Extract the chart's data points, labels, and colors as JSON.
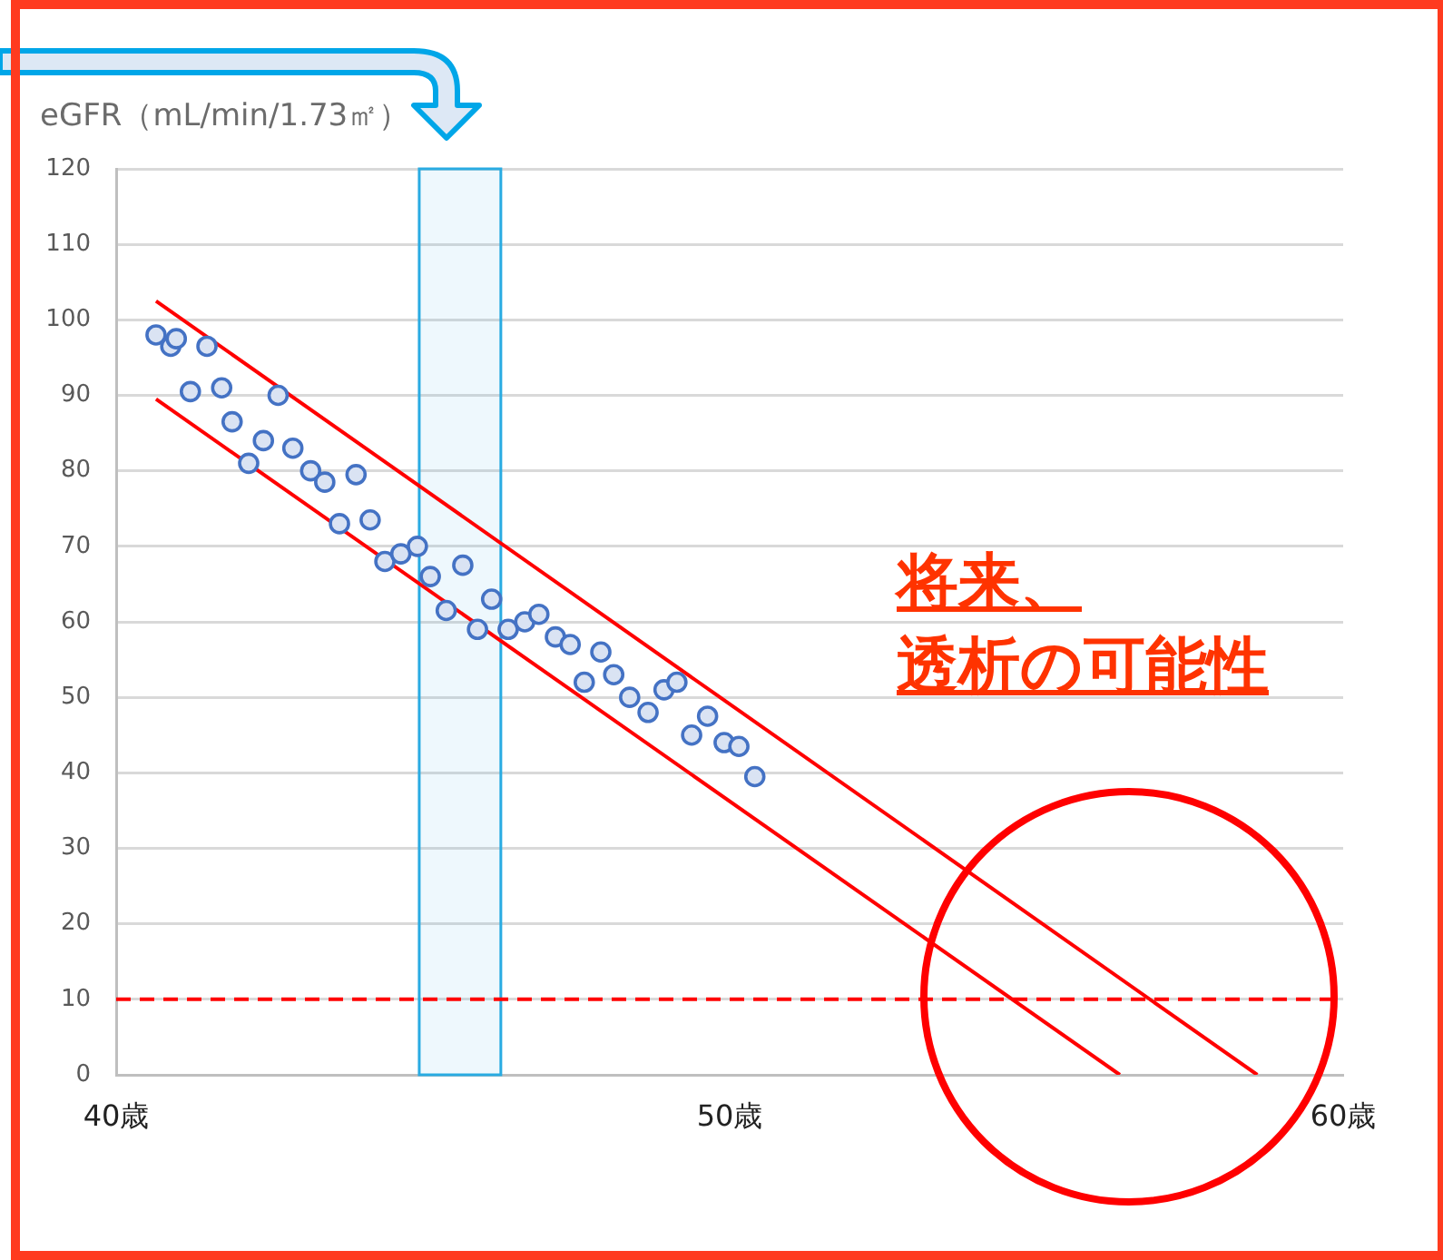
{
  "chart_data": {
    "type": "scatter",
    "ylabel": "eGFR（mL/min/1.73㎡）",
    "xlim": [
      40,
      60
    ],
    "xticks": [
      {
        "value": 40,
        "label": "40歳"
      },
      {
        "value": 50,
        "label": "50歳"
      },
      {
        "value": 60,
        "label": "60歳"
      }
    ],
    "ylim": [
      0,
      120
    ],
    "yticks": [
      0,
      10,
      20,
      30,
      40,
      50,
      60,
      70,
      80,
      90,
      100,
      110,
      120
    ],
    "grid": "y",
    "legend": false,
    "series": [
      {
        "marker": "circle",
        "color": "#4472c4",
        "x": [
          40.65,
          40.89,
          40.98,
          41.21,
          41.48,
          41.72,
          41.89,
          42.16,
          42.4,
          42.64,
          42.88,
          43.17,
          43.4,
          43.64,
          43.91,
          44.14,
          44.38,
          44.64,
          44.91,
          45.12,
          45.38,
          45.65,
          45.89,
          46.12,
          46.39,
          46.66,
          46.89,
          47.16,
          47.4,
          47.63,
          47.9,
          48.11,
          48.37,
          48.67,
          48.93,
          49.14,
          49.38,
          49.64,
          49.91,
          50.15,
          50.41
        ],
        "values": [
          98,
          96.5,
          97.5,
          90.5,
          96.5,
          91,
          86.5,
          81,
          84,
          90,
          83,
          80,
          78.5,
          73,
          79.5,
          73.5,
          68,
          69,
          70,
          66,
          61.5,
          67.5,
          59,
          63,
          59,
          60,
          61,
          58,
          57,
          52,
          56,
          53,
          50,
          48,
          51,
          52,
          45,
          47.5,
          44,
          43.5,
          39.5
        ]
      },
      {
        "type": "line",
        "marker": "none",
        "color": "#ff0000",
        "x": [
          40.65,
          58.6
        ],
        "values": [
          102.5,
          0
        ]
      },
      {
        "type": "line",
        "marker": "none",
        "color": "#ff0000",
        "x": [
          40.65,
          56.36
        ],
        "values": [
          89.5,
          0
        ]
      }
    ],
    "ref_lines": [
      {
        "axis": "y",
        "value": 10,
        "color": "#ff0000",
        "line_style": "dashed"
      }
    ],
    "bands": [
      {
        "axis": "x",
        "from": 44.94,
        "to": 46.27,
        "color": "#29abe2"
      }
    ],
    "annotations": [
      "将来、",
      "透析の可能性"
    ]
  }
}
